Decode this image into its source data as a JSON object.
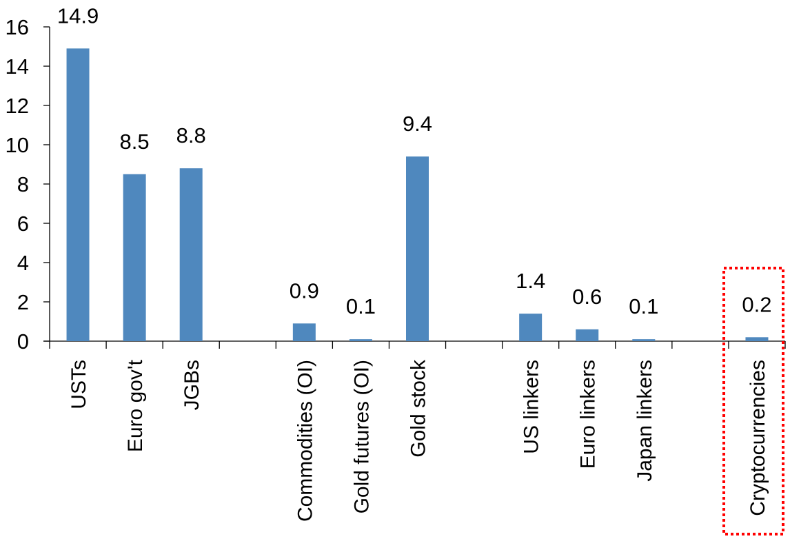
{
  "chart_data": {
    "type": "bar",
    "title": "",
    "xlabel": "",
    "ylabel": "",
    "ylim": [
      0,
      16
    ],
    "yticks": [
      "0",
      "2",
      "4",
      "6",
      "8",
      "10",
      "12",
      "14",
      "16"
    ],
    "grid": false,
    "bar_color": "#4F88BE",
    "highlight_color": "#FF0000",
    "highlighted_category": "Cryptocurrencies",
    "categories": [
      "USTs",
      "Euro gov't",
      "JGBs",
      "",
      "Commodities (OI)",
      "Gold futures (OI)",
      "Gold stock",
      "",
      "US linkers",
      "Euro linkers",
      "Japan linkers",
      "",
      "Cryptocurrencies"
    ],
    "values": [
      14.9,
      8.5,
      8.8,
      null,
      0.9,
      0.1,
      9.4,
      null,
      1.4,
      0.6,
      0.1,
      null,
      0.2
    ],
    "data_labels": [
      "14.9",
      "8.5",
      "8.8",
      "",
      "0.9",
      "0.1",
      "9.4",
      "",
      "1.4",
      "0.6",
      "0.1",
      "",
      "0.2"
    ]
  }
}
